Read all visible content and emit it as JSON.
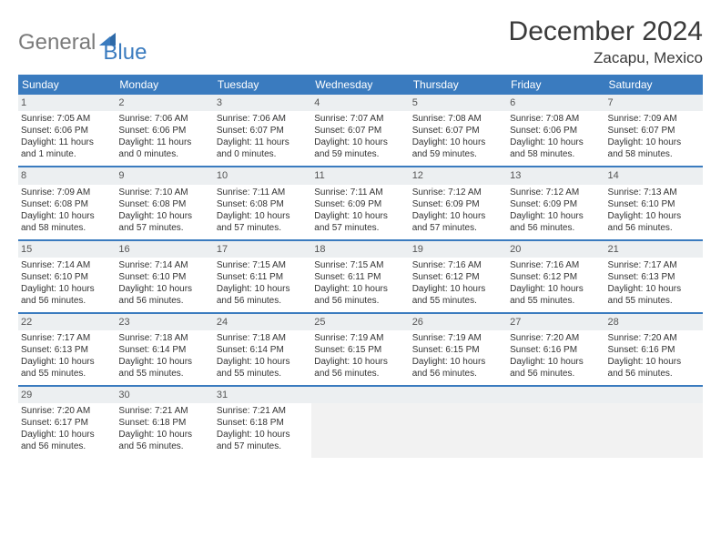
{
  "logo": {
    "word1": "General",
    "word2": "Blue"
  },
  "title": "December 2024",
  "location": "Zacapu, Mexico",
  "colors": {
    "header_bg": "#3a7bbf",
    "header_text": "#ffffff",
    "divider": "#3a7bbf",
    "daynum_bg": "#eceff1",
    "empty_bg": "#f2f2f2",
    "body_text": "#333333",
    "logo_gray": "#7a7a7a",
    "logo_blue": "#3a7bbf"
  },
  "dow": [
    "Sunday",
    "Monday",
    "Tuesday",
    "Wednesday",
    "Thursday",
    "Friday",
    "Saturday"
  ],
  "weeks": [
    [
      {
        "n": "1",
        "sr": "Sunrise: 7:05 AM",
        "ss": "Sunset: 6:06 PM",
        "d1": "Daylight: 11 hours",
        "d2": "and 1 minute."
      },
      {
        "n": "2",
        "sr": "Sunrise: 7:06 AM",
        "ss": "Sunset: 6:06 PM",
        "d1": "Daylight: 11 hours",
        "d2": "and 0 minutes."
      },
      {
        "n": "3",
        "sr": "Sunrise: 7:06 AM",
        "ss": "Sunset: 6:07 PM",
        "d1": "Daylight: 11 hours",
        "d2": "and 0 minutes."
      },
      {
        "n": "4",
        "sr": "Sunrise: 7:07 AM",
        "ss": "Sunset: 6:07 PM",
        "d1": "Daylight: 10 hours",
        "d2": "and 59 minutes."
      },
      {
        "n": "5",
        "sr": "Sunrise: 7:08 AM",
        "ss": "Sunset: 6:07 PM",
        "d1": "Daylight: 10 hours",
        "d2": "and 59 minutes."
      },
      {
        "n": "6",
        "sr": "Sunrise: 7:08 AM",
        "ss": "Sunset: 6:06 PM",
        "d1": "Daylight: 10 hours",
        "d2": "and 58 minutes."
      },
      {
        "n": "7",
        "sr": "Sunrise: 7:09 AM",
        "ss": "Sunset: 6:07 PM",
        "d1": "Daylight: 10 hours",
        "d2": "and 58 minutes."
      }
    ],
    [
      {
        "n": "8",
        "sr": "Sunrise: 7:09 AM",
        "ss": "Sunset: 6:08 PM",
        "d1": "Daylight: 10 hours",
        "d2": "and 58 minutes."
      },
      {
        "n": "9",
        "sr": "Sunrise: 7:10 AM",
        "ss": "Sunset: 6:08 PM",
        "d1": "Daylight: 10 hours",
        "d2": "and 57 minutes."
      },
      {
        "n": "10",
        "sr": "Sunrise: 7:11 AM",
        "ss": "Sunset: 6:08 PM",
        "d1": "Daylight: 10 hours",
        "d2": "and 57 minutes."
      },
      {
        "n": "11",
        "sr": "Sunrise: 7:11 AM",
        "ss": "Sunset: 6:09 PM",
        "d1": "Daylight: 10 hours",
        "d2": "and 57 minutes."
      },
      {
        "n": "12",
        "sr": "Sunrise: 7:12 AM",
        "ss": "Sunset: 6:09 PM",
        "d1": "Daylight: 10 hours",
        "d2": "and 57 minutes."
      },
      {
        "n": "13",
        "sr": "Sunrise: 7:12 AM",
        "ss": "Sunset: 6:09 PM",
        "d1": "Daylight: 10 hours",
        "d2": "and 56 minutes."
      },
      {
        "n": "14",
        "sr": "Sunrise: 7:13 AM",
        "ss": "Sunset: 6:10 PM",
        "d1": "Daylight: 10 hours",
        "d2": "and 56 minutes."
      }
    ],
    [
      {
        "n": "15",
        "sr": "Sunrise: 7:14 AM",
        "ss": "Sunset: 6:10 PM",
        "d1": "Daylight: 10 hours",
        "d2": "and 56 minutes."
      },
      {
        "n": "16",
        "sr": "Sunrise: 7:14 AM",
        "ss": "Sunset: 6:10 PM",
        "d1": "Daylight: 10 hours",
        "d2": "and 56 minutes."
      },
      {
        "n": "17",
        "sr": "Sunrise: 7:15 AM",
        "ss": "Sunset: 6:11 PM",
        "d1": "Daylight: 10 hours",
        "d2": "and 56 minutes."
      },
      {
        "n": "18",
        "sr": "Sunrise: 7:15 AM",
        "ss": "Sunset: 6:11 PM",
        "d1": "Daylight: 10 hours",
        "d2": "and 56 minutes."
      },
      {
        "n": "19",
        "sr": "Sunrise: 7:16 AM",
        "ss": "Sunset: 6:12 PM",
        "d1": "Daylight: 10 hours",
        "d2": "and 55 minutes."
      },
      {
        "n": "20",
        "sr": "Sunrise: 7:16 AM",
        "ss": "Sunset: 6:12 PM",
        "d1": "Daylight: 10 hours",
        "d2": "and 55 minutes."
      },
      {
        "n": "21",
        "sr": "Sunrise: 7:17 AM",
        "ss": "Sunset: 6:13 PM",
        "d1": "Daylight: 10 hours",
        "d2": "and 55 minutes."
      }
    ],
    [
      {
        "n": "22",
        "sr": "Sunrise: 7:17 AM",
        "ss": "Sunset: 6:13 PM",
        "d1": "Daylight: 10 hours",
        "d2": "and 55 minutes."
      },
      {
        "n": "23",
        "sr": "Sunrise: 7:18 AM",
        "ss": "Sunset: 6:14 PM",
        "d1": "Daylight: 10 hours",
        "d2": "and 55 minutes."
      },
      {
        "n": "24",
        "sr": "Sunrise: 7:18 AM",
        "ss": "Sunset: 6:14 PM",
        "d1": "Daylight: 10 hours",
        "d2": "and 55 minutes."
      },
      {
        "n": "25",
        "sr": "Sunrise: 7:19 AM",
        "ss": "Sunset: 6:15 PM",
        "d1": "Daylight: 10 hours",
        "d2": "and 56 minutes."
      },
      {
        "n": "26",
        "sr": "Sunrise: 7:19 AM",
        "ss": "Sunset: 6:15 PM",
        "d1": "Daylight: 10 hours",
        "d2": "and 56 minutes."
      },
      {
        "n": "27",
        "sr": "Sunrise: 7:20 AM",
        "ss": "Sunset: 6:16 PM",
        "d1": "Daylight: 10 hours",
        "d2": "and 56 minutes."
      },
      {
        "n": "28",
        "sr": "Sunrise: 7:20 AM",
        "ss": "Sunset: 6:16 PM",
        "d1": "Daylight: 10 hours",
        "d2": "and 56 minutes."
      }
    ],
    [
      {
        "n": "29",
        "sr": "Sunrise: 7:20 AM",
        "ss": "Sunset: 6:17 PM",
        "d1": "Daylight: 10 hours",
        "d2": "and 56 minutes."
      },
      {
        "n": "30",
        "sr": "Sunrise: 7:21 AM",
        "ss": "Sunset: 6:18 PM",
        "d1": "Daylight: 10 hours",
        "d2": "and 56 minutes."
      },
      {
        "n": "31",
        "sr": "Sunrise: 7:21 AM",
        "ss": "Sunset: 6:18 PM",
        "d1": "Daylight: 10 hours",
        "d2": "and 57 minutes."
      },
      null,
      null,
      null,
      null
    ]
  ]
}
